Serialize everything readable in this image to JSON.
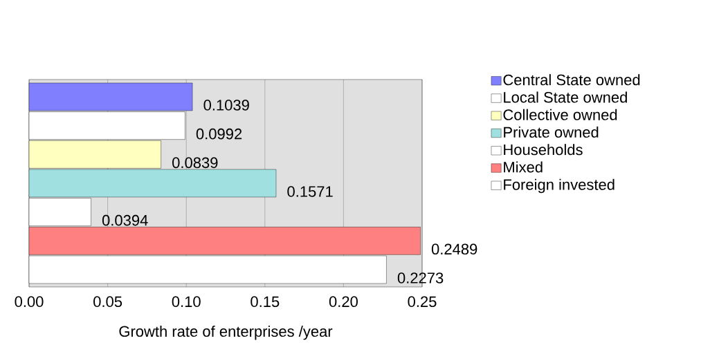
{
  "chart_data": {
    "type": "bar",
    "orientation": "horizontal",
    "xlabel": "Growth rate of enterprises /year",
    "categories": [
      null,
      null,
      null,
      null,
      null,
      null,
      null
    ],
    "series": [
      {
        "name": "Central State owned",
        "color": "#8080ff",
        "values": [
          0.1039,
          null,
          null,
          null,
          null,
          null,
          null
        ],
        "value_labels": [
          "0.1039",
          null,
          null,
          null,
          null,
          null,
          null
        ]
      },
      {
        "name": "Local State owned",
        "color": "#ffffff",
        "values": [
          null,
          0.0992,
          null,
          null,
          null,
          null,
          null
        ],
        "value_labels": [
          null,
          "0.0992",
          null,
          null,
          null,
          null,
          null
        ]
      },
      {
        "name": "Collective owned",
        "color": "#ffffc0",
        "values": [
          null,
          null,
          0.0839,
          null,
          null,
          null,
          null
        ],
        "value_labels": [
          null,
          null,
          "0.0839",
          null,
          null,
          null,
          null
        ]
      },
      {
        "name": "Private owned",
        "color": "#a0e0e0",
        "values": [
          null,
          null,
          null,
          0.1571,
          null,
          null,
          null
        ],
        "value_labels": [
          null,
          null,
          null,
          "0.1571",
          null,
          null,
          null
        ]
      },
      {
        "name": "Households",
        "color": "#ffffff",
        "values": [
          null,
          null,
          null,
          null,
          0.0394,
          null,
          null
        ],
        "value_labels": [
          null,
          null,
          null,
          null,
          "0.0394",
          null,
          null
        ]
      },
      {
        "name": "Mixed",
        "color": "#ff8080",
        "values": [
          null,
          null,
          null,
          null,
          null,
          0.2489,
          null
        ],
        "value_labels": [
          null,
          null,
          null,
          null,
          null,
          "0.2489",
          null
        ]
      },
      {
        "name": "Foreign invested",
        "color": "#ffffff",
        "values": [
          null,
          null,
          null,
          null,
          null,
          null,
          0.2273
        ],
        "value_labels": [
          null,
          null,
          null,
          null,
          null,
          null,
          "0.2273"
        ]
      }
    ],
    "xlim": [
      0,
      0.25
    ],
    "xticks": [
      {
        "value": 0,
        "label": "0.00"
      },
      0.05,
      {
        "value": 0.1,
        "label": "0.10"
      },
      0.15,
      {
        "value": 0.2,
        "label": "0.20"
      },
      0.25
    ],
    "grid": "x",
    "legend": "top right"
  }
}
